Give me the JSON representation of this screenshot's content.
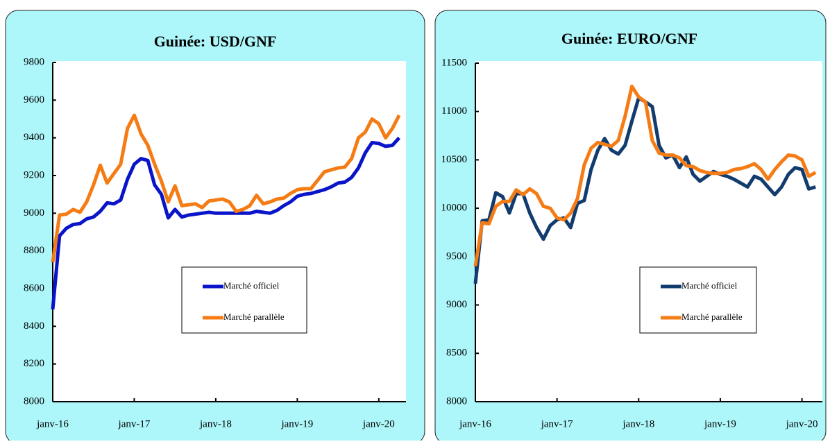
{
  "chart_data": [
    {
      "type": "line",
      "title": "Guinée: USD/GNF",
      "x": [
        "2016-01",
        "2016-02",
        "2016-03",
        "2016-04",
        "2016-05",
        "2016-06",
        "2016-07",
        "2016-08",
        "2016-09",
        "2016-10",
        "2016-11",
        "2016-12",
        "2017-01",
        "2017-02",
        "2017-03",
        "2017-04",
        "2017-05",
        "2017-06",
        "2017-07",
        "2017-08",
        "2017-09",
        "2017-10",
        "2017-11",
        "2017-12",
        "2018-01",
        "2018-02",
        "2018-03",
        "2018-04",
        "2018-05",
        "2018-06",
        "2018-07",
        "2018-08",
        "2018-09",
        "2018-10",
        "2018-11",
        "2018-12",
        "2019-01",
        "2019-02",
        "2019-03",
        "2019-04",
        "2019-05",
        "2019-06",
        "2019-07",
        "2019-08",
        "2019-09",
        "2019-10",
        "2019-11",
        "2019-12",
        "2020-01",
        "2020-02",
        "2020-03",
        "2020-04"
      ],
      "xlim": [
        "2016-01",
        "2020-05"
      ],
      "xticks": [
        {
          "value": "2016-01",
          "label": "janv-16"
        },
        {
          "value": "2017-01",
          "label": "janv-17"
        },
        {
          "value": "2018-01",
          "label": "janv-18"
        },
        {
          "value": "2019-01",
          "label": "janv-19"
        },
        {
          "value": "2020-01",
          "label": "janv-20"
        }
      ],
      "ylim": [
        8000,
        9800
      ],
      "yticks": [
        8000,
        8200,
        8400,
        8600,
        8800,
        9000,
        9200,
        9400,
        9600,
        9800
      ],
      "legend_position": "center",
      "series": [
        {
          "name": "Marché officiel",
          "color": "#0a14c8",
          "values": [
            8490,
            8880,
            8920,
            8940,
            8945,
            8970,
            8980,
            9010,
            9055,
            9050,
            9070,
            9180,
            9260,
            9290,
            9280,
            9150,
            9100,
            8975,
            9020,
            8980,
            8990,
            8995,
            9000,
            9005,
            9000,
            9000,
            9000,
            9000,
            9000,
            9000,
            9010,
            9005,
            9000,
            9015,
            9040,
            9060,
            9090,
            9100,
            9105,
            9115,
            9125,
            9140,
            9160,
            9165,
            9190,
            9240,
            9320,
            9375,
            9370,
            9355,
            9360,
            9400
          ]
        },
        {
          "name": "Marché parallèle",
          "color": "#f57c14",
          "values": [
            8740,
            8990,
            8995,
            9020,
            9005,
            9060,
            9150,
            9255,
            9160,
            9210,
            9260,
            9450,
            9520,
            9420,
            9360,
            9260,
            9170,
            9060,
            9145,
            9040,
            9045,
            9050,
            9030,
            9065,
            9070,
            9075,
            9060,
            9010,
            9020,
            9040,
            9095,
            9050,
            9060,
            9075,
            9080,
            9105,
            9125,
            9130,
            9130,
            9175,
            9220,
            9230,
            9240,
            9245,
            9290,
            9400,
            9430,
            9500,
            9475,
            9400,
            9450,
            9520
          ]
        }
      ]
    },
    {
      "type": "line",
      "title": "Guinée: EURO/GNF",
      "x": [
        "2016-01",
        "2016-02",
        "2016-03",
        "2016-04",
        "2016-05",
        "2016-06",
        "2016-07",
        "2016-08",
        "2016-09",
        "2016-10",
        "2016-11",
        "2016-12",
        "2017-01",
        "2017-02",
        "2017-03",
        "2017-04",
        "2017-05",
        "2017-06",
        "2017-07",
        "2017-08",
        "2017-09",
        "2017-10",
        "2017-11",
        "2017-12",
        "2018-01",
        "2018-02",
        "2018-03",
        "2018-04",
        "2018-05",
        "2018-06",
        "2018-07",
        "2018-08",
        "2018-09",
        "2018-10",
        "2018-11",
        "2018-12",
        "2019-01",
        "2019-02",
        "2019-03",
        "2019-04",
        "2019-05",
        "2019-06",
        "2019-07",
        "2019-08",
        "2019-09",
        "2019-10",
        "2019-11",
        "2019-12",
        "2020-01",
        "2020-02",
        "2020-03"
      ],
      "xlim": [
        "2016-01",
        "2020-04"
      ],
      "xticks": [
        {
          "value": "2016-01",
          "label": "janv-16"
        },
        {
          "value": "2017-01",
          "label": "janv-17"
        },
        {
          "value": "2018-01",
          "label": "janv-18"
        },
        {
          "value": "2019-01",
          "label": "janv-19"
        },
        {
          "value": "2020-01",
          "label": "janv-20"
        }
      ],
      "ylim": [
        8000,
        11500
      ],
      "yticks": [
        8000,
        8500,
        9000,
        9500,
        10000,
        10500,
        11000,
        11500
      ],
      "legend_position": "center",
      "series": [
        {
          "name": "Marché officiel",
          "color": "#123c6e",
          "values": [
            9220,
            9870,
            9880,
            10160,
            10120,
            9950,
            10150,
            10150,
            9950,
            9800,
            9680,
            9820,
            9880,
            9900,
            9800,
            10050,
            10080,
            10400,
            10600,
            10720,
            10600,
            10560,
            10650,
            10900,
            11140,
            11100,
            11050,
            10650,
            10520,
            10550,
            10420,
            10530,
            10350,
            10280,
            10330,
            10380,
            10350,
            10330,
            10300,
            10260,
            10220,
            10330,
            10300,
            10220,
            10140,
            10220,
            10350,
            10420,
            10400,
            10200,
            10220
          ]
        },
        {
          "name": "Marché parallèle",
          "color": "#f57c14",
          "values": [
            9400,
            9850,
            9840,
            10020,
            10070,
            10070,
            10190,
            10140,
            10200,
            10150,
            10020,
            10000,
            9900,
            9880,
            9950,
            10100,
            10450,
            10620,
            10680,
            10660,
            10640,
            10700,
            10950,
            11260,
            11150,
            11100,
            10700,
            10570,
            10550,
            10550,
            10520,
            10440,
            10430,
            10390,
            10370,
            10360,
            10360,
            10370,
            10400,
            10410,
            10430,
            10460,
            10400,
            10300,
            10400,
            10480,
            10550,
            10540,
            10500,
            10330,
            10370
          ]
        }
      ]
    }
  ]
}
